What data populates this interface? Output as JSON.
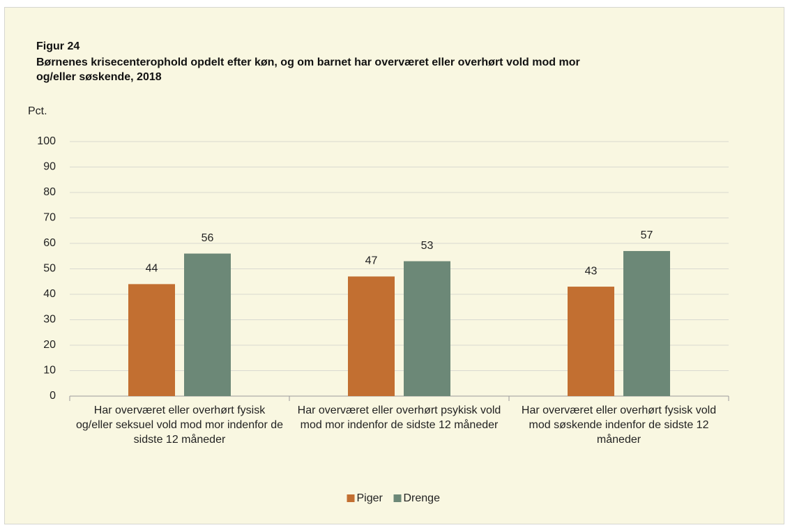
{
  "chart_data": {
    "type": "bar",
    "title": "Figur 24",
    "subtitle": "Børnenes krisecenterophold opdelt efter køn, og om barnet har overværet eller overhørt vold mod mor og/eller søskende, 2018",
    "y_label": "Pct.",
    "categories": [
      "Har overværet eller overhørt fysisk og/eller seksuel vold mod mor indenfor de sidste 12 måneder",
      "Har overværet eller overhørt psykisk vold mod mor indenfor de sidste 12 måneder",
      "Har overværet eller overhørt fysisk vold mod søskende indenfor de sidste 12 måneder"
    ],
    "series": [
      {
        "name": "Piger",
        "color": "#c26f31",
        "values": [
          44,
          47,
          43
        ]
      },
      {
        "name": "Drenge",
        "color": "#6c8877",
        "values": [
          56,
          53,
          57
        ]
      }
    ],
    "ylim": [
      0,
      100
    ],
    "yticks": [
      0,
      10,
      20,
      30,
      40,
      50,
      60,
      70,
      80,
      90,
      100
    ],
    "grid": true,
    "legend": "bottom"
  }
}
